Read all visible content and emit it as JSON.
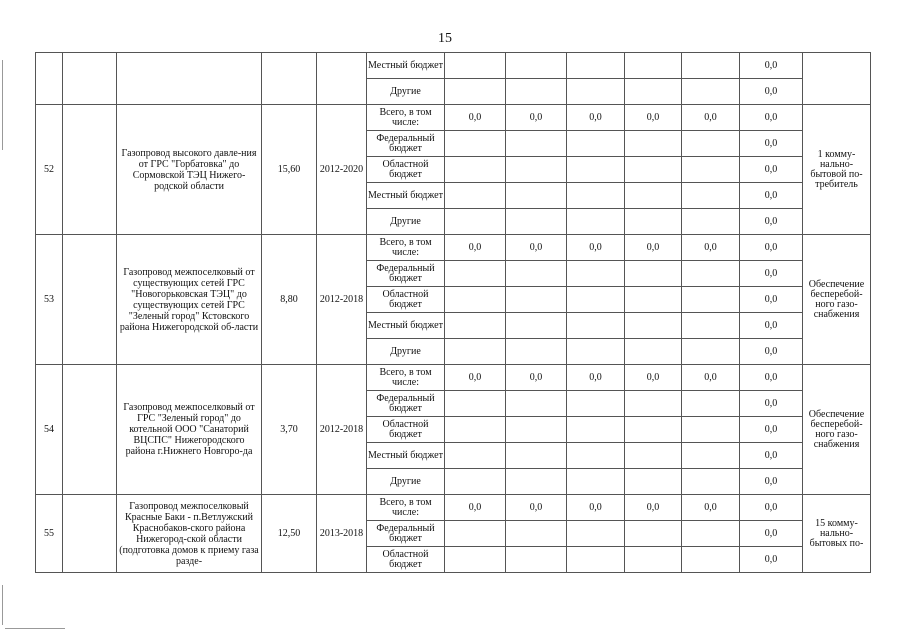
{
  "page_number": "15",
  "table": {
    "groups": [
      {
        "num": "",
        "name": "",
        "length": "",
        "period": "",
        "result": "",
        "rows": [
          {
            "source": "Местный бюджет",
            "years": [
              "",
              "",
              "",
              "",
              ""
            ],
            "total": "0,0"
          },
          {
            "source": "Другие",
            "years": [
              "",
              "",
              "",
              "",
              ""
            ],
            "total": "0,0"
          }
        ]
      },
      {
        "num": "52",
        "name": "Газопровод высокого давле-ния от ГРС \"Горбатовка\" до Сормовской ТЭЦ Нижего-родской области",
        "length": "15,60",
        "period": "2012-2020",
        "result": "1 комму-нально-бытовой по-требитель",
        "rows": [
          {
            "source": "Всего, в том числе:",
            "years": [
              "0,0",
              "0,0",
              "0,0",
              "0,0",
              "0,0"
            ],
            "total": "0,0"
          },
          {
            "source": "Федеральный бюджет",
            "years": [
              "",
              "",
              "",
              "",
              ""
            ],
            "total": "0,0"
          },
          {
            "source": "Областной бюджет",
            "years": [
              "",
              "",
              "",
              "",
              ""
            ],
            "total": "0,0"
          },
          {
            "source": "Местный бюджет",
            "years": [
              "",
              "",
              "",
              "",
              ""
            ],
            "total": "0,0"
          },
          {
            "source": "Другие",
            "years": [
              "",
              "",
              "",
              "",
              ""
            ],
            "total": "0,0"
          }
        ]
      },
      {
        "num": "53",
        "name": "Газопровод межпоселковый от существующих сетей ГРС \"Новогорьковская ТЭЦ\" до существующих сетей ГРС \"Зеленый город\" Кстовского района Нижегородской об-ласти",
        "length": "8,80",
        "period": "2012-2018",
        "result": "Обеспечение бесперебой-ного газо-снабжения",
        "rows": [
          {
            "source": "Всего, в том числе:",
            "years": [
              "0,0",
              "0,0",
              "0,0",
              "0,0",
              "0,0"
            ],
            "total": "0,0"
          },
          {
            "source": "Федеральный бюджет",
            "years": [
              "",
              "",
              "",
              "",
              ""
            ],
            "total": "0,0"
          },
          {
            "source": "Областной бюджет",
            "years": [
              "",
              "",
              "",
              "",
              ""
            ],
            "total": "0,0"
          },
          {
            "source": "Местный бюджет",
            "years": [
              "",
              "",
              "",
              "",
              ""
            ],
            "total": "0,0"
          },
          {
            "source": "Другие",
            "years": [
              "",
              "",
              "",
              "",
              ""
            ],
            "total": "0,0"
          }
        ]
      },
      {
        "num": "54",
        "name": "Газопровод межпоселковый от ГРС \"Зеленый город\" до котельной ООО \"Санаторий ВЦСПС\" Нижегородского района г.Нижнего Новгоро-да",
        "length": "3,70",
        "period": "2012-2018",
        "result": "Обеспечение бесперебой-ного газо-снабжения",
        "rows": [
          {
            "source": "Всего, в том числе:",
            "years": [
              "0,0",
              "0,0",
              "0,0",
              "0,0",
              "0,0"
            ],
            "total": "0,0"
          },
          {
            "source": "Федеральный бюджет",
            "years": [
              "",
              "",
              "",
              "",
              ""
            ],
            "total": "0,0"
          },
          {
            "source": "Областной бюджет",
            "years": [
              "",
              "",
              "",
              "",
              ""
            ],
            "total": "0,0"
          },
          {
            "source": "Местный бюджет",
            "years": [
              "",
              "",
              "",
              "",
              ""
            ],
            "total": "0,0"
          },
          {
            "source": "Другие",
            "years": [
              "",
              "",
              "",
              "",
              ""
            ],
            "total": "0,0"
          }
        ]
      },
      {
        "num": "55",
        "name": "Газопровод межпоселковый Красные Баки - п.Ветлужский Краснобаков-ского района Нижегород-ской области (подготовка домов к приему газа разде-",
        "length": "12,50",
        "period": "2013-2018",
        "result": "15 комму-нально-бытовых по-",
        "rows": [
          {
            "source": "Всего, в том числе:",
            "years": [
              "0,0",
              "0,0",
              "0,0",
              "0,0",
              "0,0"
            ],
            "total": "0,0"
          },
          {
            "source": "Федеральный бюджет",
            "years": [
              "",
              "",
              "",
              "",
              ""
            ],
            "total": "0,0"
          },
          {
            "source": "Областной бюджет",
            "years": [
              "",
              "",
              "",
              "",
              ""
            ],
            "total": "0,0"
          }
        ]
      }
    ]
  }
}
